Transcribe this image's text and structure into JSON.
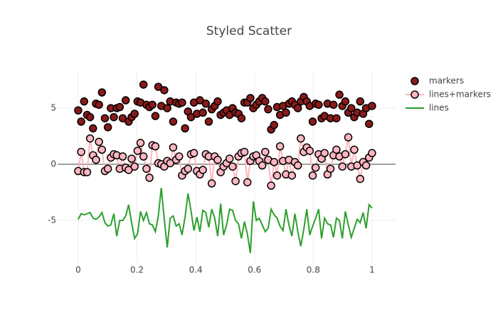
{
  "chart_data": {
    "type": "scatter",
    "title": "Styled Scatter",
    "x": [
      0,
      0.0101,
      0.0202,
      0.0303,
      0.0404,
      0.0505,
      0.0606,
      0.0707,
      0.0808,
      0.0909,
      0.101,
      0.1111,
      0.1212,
      0.1313,
      0.1414,
      0.1515,
      0.1616,
      0.1717,
      0.1818,
      0.1919,
      0.202,
      0.2121,
      0.2222,
      0.2323,
      0.2424,
      0.2525,
      0.2626,
      0.2727,
      0.2828,
      0.2929,
      0.303,
      0.3131,
      0.3232,
      0.3333,
      0.3434,
      0.3535,
      0.3636,
      0.3737,
      0.3838,
      0.3939,
      0.404,
      0.4141,
      0.4242,
      0.4343,
      0.4444,
      0.4545,
      0.4646,
      0.4747,
      0.4848,
      0.4949,
      0.5051,
      0.5152,
      0.5253,
      0.5354,
      0.5455,
      0.5556,
      0.5657,
      0.5758,
      0.5859,
      0.596,
      0.6061,
      0.6162,
      0.6263,
      0.6364,
      0.6465,
      0.6566,
      0.6667,
      0.6768,
      0.6869,
      0.697,
      0.7071,
      0.7172,
      0.7273,
      0.7374,
      0.7475,
      0.7576,
      0.7677,
      0.7778,
      0.7879,
      0.798,
      0.8081,
      0.8182,
      0.8283,
      0.8384,
      0.8485,
      0.8586,
      0.8687,
      0.8788,
      0.8889,
      0.899,
      0.9091,
      0.9192,
      0.9293,
      0.9394,
      0.9495,
      0.9596,
      0.9697,
      0.9798,
      0.9899,
      1
    ],
    "series": [
      {
        "name": "markers",
        "mode": "markers",
        "color": "#8b1a1a",
        "outline": "#000000",
        "values": [
          4.8,
          3.8,
          5.6,
          4.4,
          4.2,
          3.2,
          5.4,
          5.3,
          6.4,
          4.1,
          3.3,
          5.0,
          4.2,
          5.0,
          5.1,
          4.1,
          5.7,
          3.8,
          4.2,
          4.5,
          5.6,
          5.5,
          7.1,
          5.3,
          5.1,
          5.3,
          4.3,
          6.9,
          5.2,
          6.6,
          5.0,
          5.6,
          3.8,
          5.5,
          5.4,
          5.5,
          3.2,
          4.7,
          4.2,
          5.5,
          4.5,
          5.7,
          4.6,
          5.4,
          3.8,
          4.9,
          5.2,
          5.6,
          4.4,
          4.6,
          4.8,
          4.4,
          5.0,
          4.6,
          4.5,
          4.1,
          5.5,
          5.5,
          5.9,
          5.0,
          5.3,
          5.6,
          5.9,
          5.6,
          4.9,
          3.1,
          3.5,
          5.1,
          4.4,
          5.2,
          4.6,
          5.4,
          5.6,
          5.3,
          5.0,
          5.6,
          6.0,
          5.6,
          5.2,
          3.8,
          5.4,
          5.3,
          4.1,
          4.3,
          5.4,
          4.1,
          5.3,
          4.1,
          6.2,
          5.2,
          5.6,
          4.6,
          5.0,
          4.2,
          4.6,
          5.6,
          4.5,
          5.0,
          3.6,
          5.2
        ]
      },
      {
        "name": "lines+markers",
        "mode": "lines+markers",
        "color": "#ffb6c1",
        "outline": "#000000",
        "values": [
          -0.6,
          1.1,
          -0.7,
          -0.7,
          2.3,
          0.8,
          0.4,
          2.0,
          1.3,
          -0.6,
          -0.4,
          0.6,
          0.9,
          0.8,
          -0.4,
          0.7,
          -0.3,
          -0.5,
          0.5,
          -0.2,
          1.2,
          1.9,
          0.7,
          -0.4,
          -1.2,
          1.7,
          1.6,
          0.1,
          0.0,
          -0.2,
          0.3,
          0.1,
          1.5,
          0.4,
          0.7,
          -1.0,
          -0.6,
          -0.4,
          0.9,
          1.0,
          -0.6,
          -0.9,
          -0.5,
          0.9,
          0.7,
          -1.7,
          0.7,
          0.4,
          -0.7,
          -0.2,
          0.1,
          0.5,
          -0.2,
          -1.5,
          0.7,
          1.0,
          1.1,
          -1.6,
          0.3,
          0.7,
          0.8,
          0.3,
          -0.1,
          1.1,
          0.4,
          -1.9,
          0.2,
          -1.0,
          1.6,
          0.3,
          -0.9,
          0.4,
          -1.0,
          0.2,
          -0.1,
          2.3,
          1.1,
          1.5,
          1.2,
          -1.0,
          -0.3,
          0.9,
          0.5,
          1.0,
          -0.9,
          -0.4,
          0.8,
          1.3,
          0.7,
          -0.2,
          0.9,
          2.4,
          -0.2,
          1.3,
          -0.1,
          -1.3,
          0.2,
          -0.1,
          0.6,
          1.0
        ]
      },
      {
        "name": "lines",
        "mode": "lines",
        "color": "#2ca02c",
        "values": [
          -4.9,
          -4.4,
          -4.5,
          -4.4,
          -4.3,
          -4.8,
          -4.9,
          -4.7,
          -4.3,
          -5.2,
          -5.5,
          -5.4,
          -4.4,
          -6.4,
          -5.0,
          -5.0,
          -4.6,
          -3.6,
          -5.2,
          -6.6,
          -6.2,
          -4.2,
          -5.0,
          -4.3,
          -5.3,
          -5.4,
          -6.0,
          -4.6,
          -2.1,
          -4.9,
          -7.4,
          -4.8,
          -4.6,
          -5.5,
          -5.3,
          -6.3,
          -4.7,
          -2.6,
          -4.1,
          -5.9,
          -4.7,
          -6.0,
          -4.1,
          -4.3,
          -5.6,
          -4.0,
          -4.8,
          -6.4,
          -3.5,
          -6.3,
          -5.4,
          -4.0,
          -4.1,
          -5.0,
          -5.3,
          -6.6,
          -5.1,
          -6.2,
          -7.9,
          -3.3,
          -5.0,
          -4.8,
          -5.4,
          -6.0,
          -5.7,
          -4.0,
          -4.5,
          -4.8,
          -5.5,
          -5.9,
          -4.0,
          -5.4,
          -6.4,
          -4.4,
          -6.0,
          -7.3,
          -5.8,
          -4.0,
          -6.3,
          -5.5,
          -4.8,
          -4.0,
          -6.6,
          -4.8,
          -5.3,
          -5.4,
          -6.5,
          -4.8,
          -5.0,
          -6.6,
          -4.2,
          -5.4,
          -6.5,
          -5.7,
          -4.9,
          -5.2,
          -4.3,
          -5.7,
          -3.6,
          -3.9
        ]
      }
    ],
    "xlim": [
      -0.07,
      1.08
    ],
    "ylim": [
      -8.8,
      8.3
    ],
    "xticks": [
      0,
      0.2,
      0.4,
      0.6,
      0.8,
      1
    ],
    "yticks": [
      -5,
      0,
      5
    ],
    "grid": true,
    "zeroline": true,
    "legend": "right"
  }
}
